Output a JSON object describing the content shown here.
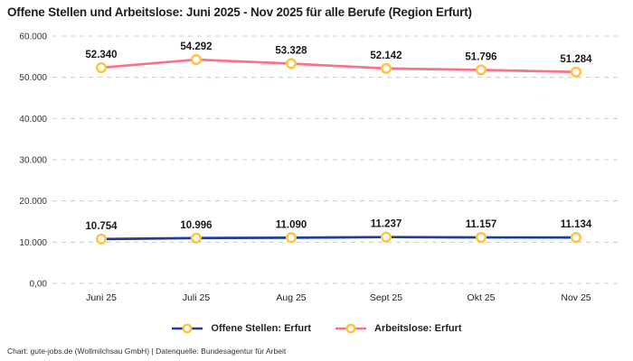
{
  "title": "Offene Stellen und Arbeitslose: Juni 2025 - Nov 2025 für alle Berufe (Region Erfurt)",
  "footer": "Chart: gute-jobs.de (Wollmilchsau GmbH) | Datenquelle: Bundesagentur für Arbeit",
  "colors": {
    "offene_stellen_line": "#1F3D99",
    "arbeitslose_line": "#F9718A",
    "marker_ring": "#FEC43D",
    "marker_fill": "#FFFFFF",
    "grid": "#CCCCCC",
    "label_text": "#1A1A1A",
    "tick_text": "#333333"
  },
  "chart_data": {
    "type": "line",
    "categories": [
      "Juni 25",
      "Juli 25",
      "Aug 25",
      "Sept 25",
      "Okt 25",
      "Nov 25"
    ],
    "series": [
      {
        "name": "Offene Stellen: Erfurt",
        "color_key": "offene_stellen_line",
        "values": [
          10754,
          10996,
          11090,
          11237,
          11157,
          11134
        ],
        "labels": [
          "10.754",
          "10.996",
          "11.090",
          "11.237",
          "11.157",
          "11.134"
        ]
      },
      {
        "name": "Arbeitslose: Erfurt",
        "color_key": "arbeitslose_line",
        "values": [
          52340,
          54292,
          53328,
          52142,
          51796,
          51284
        ],
        "labels": [
          "52.340",
          "54.292",
          "53.328",
          "52.142",
          "51.796",
          "51.284"
        ]
      }
    ],
    "ylim": [
      0,
      60000
    ],
    "yticks": [
      0,
      10000,
      20000,
      30000,
      40000,
      50000,
      60000
    ],
    "ytick_labels": [
      "0,00",
      "10.000",
      "20.000",
      "30.000",
      "40.000",
      "50.000",
      "60.000"
    ],
    "grid": true,
    "grid_style": "dashed",
    "legend_position": "bottom"
  }
}
